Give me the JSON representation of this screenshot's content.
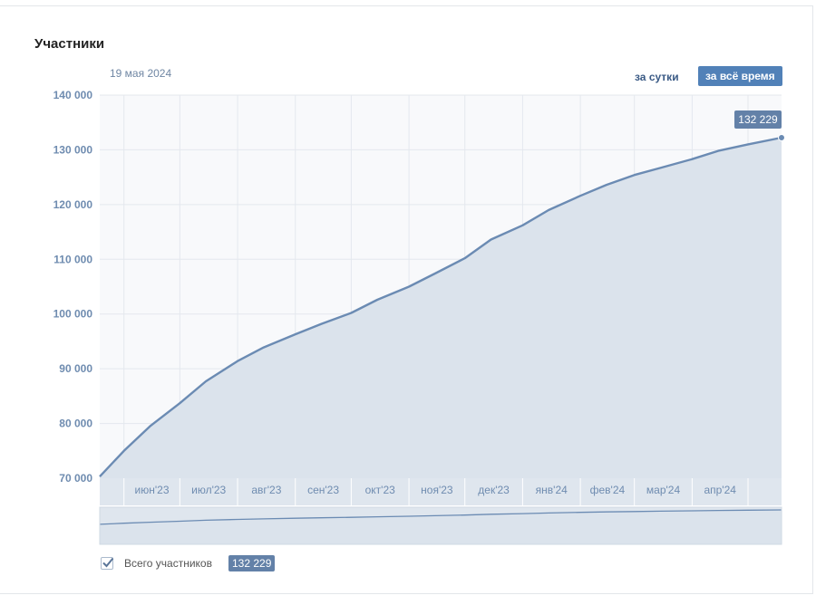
{
  "header": {
    "title": "Участники",
    "date": "19 мая 2024",
    "btn_day": "за сутки",
    "btn_all": "за всё время"
  },
  "colors": {
    "line": "#6b8bb3",
    "fill": "#dbe3ec",
    "grid": "#e4e8ee",
    "tick": "#6f8cb0",
    "accent": "#5181b8",
    "badge": "#6381a8"
  },
  "legend": {
    "label": "Всего участников",
    "value": "132 229",
    "checked": true
  },
  "chart_data": {
    "type": "area",
    "title": "Участники",
    "xlabel": "",
    "ylabel": "",
    "ylim": [
      70000,
      140000
    ],
    "grid": true,
    "y_ticks": [
      70000,
      80000,
      90000,
      100000,
      110000,
      120000,
      130000,
      140000
    ],
    "y_tick_labels": [
      "70 000",
      "80 000",
      "90 000",
      "100 000",
      "110 000",
      "120 000",
      "130 000",
      "140 000"
    ],
    "x_tick_labels": [
      "июн'23",
      "июл'23",
      "авг'23",
      "сен'23",
      "окт'23",
      "ноя'23",
      "дек'23",
      "янв'24",
      "фев'24",
      "мар'24",
      "апр'24"
    ],
    "last_value_label": "132 229",
    "series": [
      {
        "name": "Всего участников",
        "x": [
          "2023-05-19",
          "2023-06-01",
          "2023-06-15",
          "2023-07-01",
          "2023-07-15",
          "2023-08-01",
          "2023-08-15",
          "2023-09-01",
          "2023-09-15",
          "2023-10-01",
          "2023-10-15",
          "2023-11-01",
          "2023-11-15",
          "2023-12-01",
          "2023-12-15",
          "2024-01-01",
          "2024-01-15",
          "2024-02-01",
          "2024-02-15",
          "2024-03-01",
          "2024-03-15",
          "2024-04-01",
          "2024-04-15",
          "2024-05-01",
          "2024-05-19"
        ],
        "values": [
          70300,
          75000,
          79500,
          83700,
          87700,
          91400,
          93900,
          96300,
          98200,
          100200,
          102600,
          105000,
          107400,
          110200,
          113600,
          116200,
          119000,
          121600,
          123600,
          125400,
          126700,
          128300,
          129800,
          131000,
          132229
        ]
      }
    ]
  }
}
